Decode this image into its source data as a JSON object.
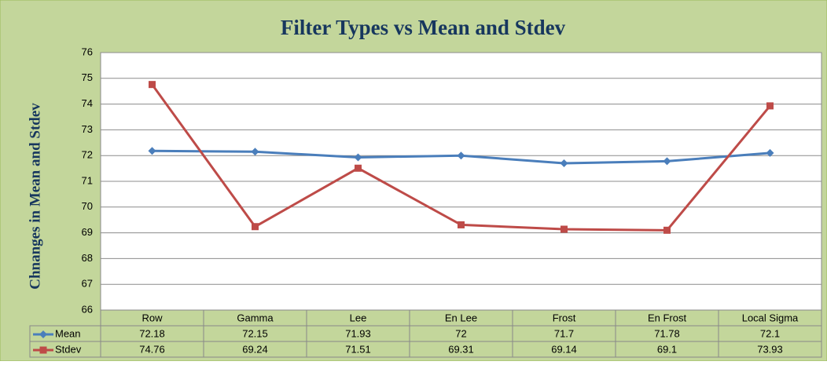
{
  "chart_data": {
    "type": "line",
    "title": "Filter Types vs Mean and Stdev",
    "y_label": "Chnanges in Mean and Stdev",
    "categories": [
      "Row",
      "Gamma",
      "Lee",
      "En Lee",
      "Frost",
      "En Frost",
      "Local Sigma"
    ],
    "series": [
      {
        "name": "Mean",
        "color": "#4a7ebb",
        "marker": "diamond",
        "values": [
          72.18,
          72.15,
          71.93,
          72,
          71.7,
          71.78,
          72.1
        ]
      },
      {
        "name": "Stdev",
        "color": "#be4b48",
        "marker": "square",
        "values": [
          74.76,
          69.24,
          71.51,
          69.31,
          69.14,
          69.1,
          73.93
        ]
      }
    ],
    "ylim": [
      66,
      76
    ],
    "yticks": [
      66,
      67,
      68,
      69,
      70,
      71,
      72,
      73,
      74,
      75,
      76
    ],
    "grid": true
  }
}
